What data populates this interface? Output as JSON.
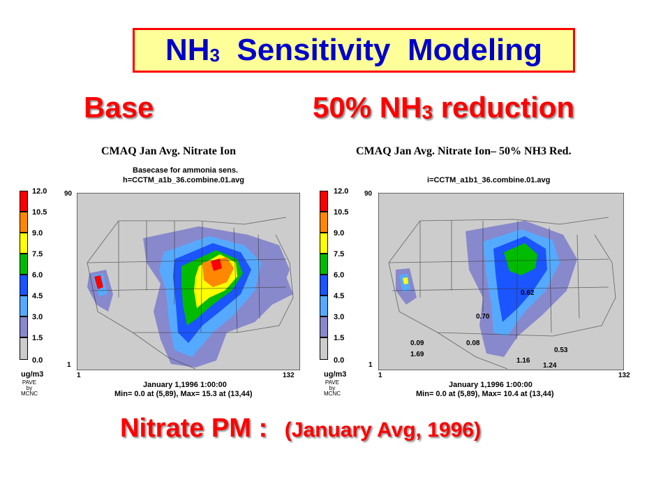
{
  "title": {
    "main": "NH",
    "sub": "3",
    "rest": "  Sensitivity  Modeling"
  },
  "base_label": "Base",
  "reduction_label": {
    "pre": "50% NH",
    "sub": "3",
    "post": " reduction"
  },
  "bottom_label": {
    "main": "Nitrate PM :",
    "paren": "(January Avg, 1996)"
  },
  "legend": {
    "values": [
      "12.0",
      "10.5",
      "9.0",
      "7.5",
      "6.0",
      "4.5",
      "3.0",
      "1.5",
      "0.0"
    ],
    "colors": [
      "#ff0000",
      "#ff8800",
      "#ffff00",
      "#00bb00",
      "#1a55ff",
      "#55aaff",
      "#8888cc",
      "#cccccc"
    ],
    "unit": "ug/m3",
    "pave": [
      "PAVE",
      "by",
      "MCNC"
    ]
  },
  "left_panel": {
    "title": "CMAQ Jan Avg. Nitrate Ion",
    "subtitle1": "Basecase for ammonia sens.",
    "subtitle2": "h=CCTM_a1b_36.combine.01.avg",
    "y_top": "90",
    "y_bottom": "1",
    "x_left": "1",
    "x_right": "132",
    "date": "January 1,1996 1:00:00",
    "minmax": "Min=  0.0 at (5,89), Max= 15.3 at (13,44)"
  },
  "right_panel": {
    "title": "CMAQ Jan Avg. Nitrate Ion– 50% NH3 Red.",
    "subtitle1": "",
    "subtitle2": "i=CCTM_a1b1_36.combine.01.avg",
    "y_top": "90",
    "y_bottom": "1",
    "x_left": "1",
    "x_right": "132",
    "date": "January 1,1996 1:00:00",
    "minmax": "Min=  0.0 at (5,89), Max= 10.4 at (13,44)",
    "annotations": [
      "0.62",
      "0.70",
      "0.09",
      "1.69",
      "0.08",
      "0.53",
      "1.16",
      "1.24"
    ]
  }
}
